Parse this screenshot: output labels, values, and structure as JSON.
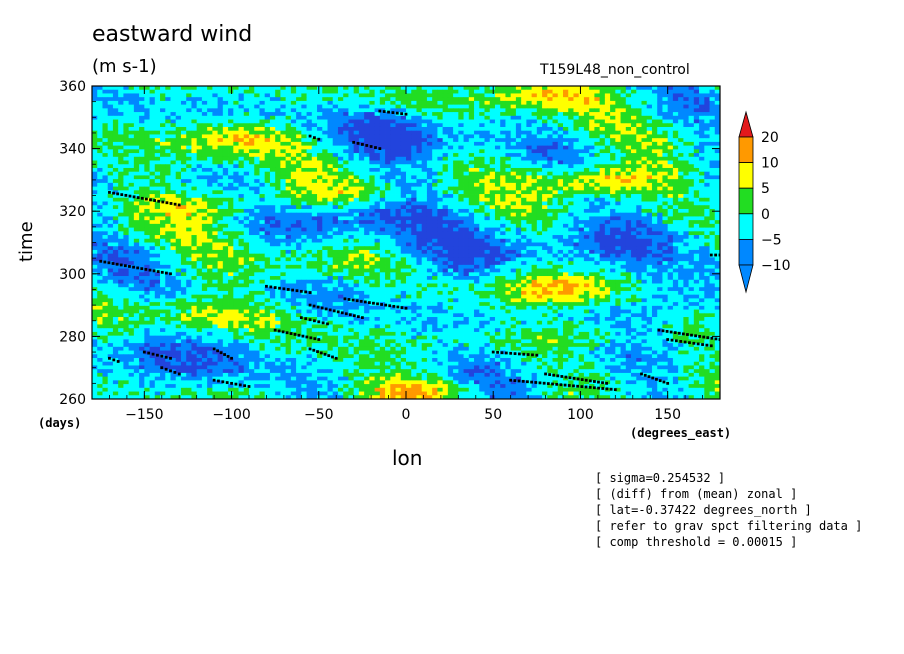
{
  "chart_data": {
    "type": "heatmap",
    "title": "eastward wind",
    "units": "(m s-1)",
    "run_name": "T159L48_non_control",
    "xlabel": "lon",
    "ylabel": "time",
    "x_units": "(degrees_east)",
    "y_units": "(days)",
    "xlim": [
      -180,
      180
    ],
    "ylim": [
      260,
      360
    ],
    "x_ticks": [
      -150,
      -100,
      -50,
      0,
      50,
      100,
      150
    ],
    "y_ticks": [
      260,
      280,
      300,
      320,
      340,
      360
    ],
    "colorbar": {
      "levels": [
        20,
        10,
        5,
        0,
        -5,
        -10
      ],
      "colors": [
        "#e31a1c",
        "#ff9900",
        "#ffff00",
        "#22dd22",
        "#00ffff",
        "#0088ff",
        "#2244dd"
      ]
    },
    "warm_patches": [
      {
        "lon": 10,
        "time": 262,
        "value": 15
      },
      {
        "lon": 85,
        "time": 295,
        "value": 12
      },
      {
        "lon": 110,
        "time": 330,
        "value": 14
      },
      {
        "lon": -95,
        "time": 343,
        "value": 10
      },
      {
        "lon": -40,
        "time": 325,
        "value": 8
      },
      {
        "lon": -110,
        "time": 322,
        "value": 9
      },
      {
        "lon": 80,
        "time": 357,
        "value": 12
      },
      {
        "lon": -120,
        "time": 287,
        "value": 6
      },
      {
        "lon": 100,
        "time": 280,
        "value": 7
      },
      {
        "lon": -60,
        "time": 303,
        "value": 6
      }
    ],
    "cold_patches": [
      {
        "lon": -30,
        "time": 318,
        "value": -10
      },
      {
        "lon": 30,
        "time": 305,
        "value": -9
      },
      {
        "lon": 130,
        "time": 312,
        "value": -8
      },
      {
        "lon": -130,
        "time": 272,
        "value": -7
      },
      {
        "lon": 60,
        "time": 268,
        "value": -8
      },
      {
        "lon": 0,
        "time": 345,
        "value": -9
      },
      {
        "lon": 150,
        "time": 290,
        "value": -7
      }
    ],
    "filter_markers": [
      {
        "lon": [
          -170,
          -130
        ],
        "time": [
          326,
          322
        ]
      },
      {
        "lon": [
          -175,
          -135
        ],
        "time": [
          304,
          300
        ]
      },
      {
        "lon": [
          -80,
          -55
        ],
        "time": [
          296,
          294
        ]
      },
      {
        "lon": [
          -55,
          -25
        ],
        "time": [
          290,
          286
        ]
      },
      {
        "lon": [
          -35,
          0
        ],
        "time": [
          292,
          289
        ]
      },
      {
        "lon": [
          -75,
          -50
        ],
        "time": [
          282,
          279
        ]
      },
      {
        "lon": [
          -60,
          -45
        ],
        "time": [
          286,
          284
        ]
      },
      {
        "lon": [
          -55,
          -40
        ],
        "time": [
          276,
          273
        ]
      },
      {
        "lon": [
          -150,
          -135
        ],
        "time": [
          275,
          273
        ]
      },
      {
        "lon": [
          -140,
          -130
        ],
        "time": [
          270,
          268
        ]
      },
      {
        "lon": [
          -110,
          -100
        ],
        "time": [
          276,
          273
        ]
      },
      {
        "lon": [
          -110,
          -90
        ],
        "time": [
          266,
          264
        ]
      },
      {
        "lon": [
          -170,
          -165
        ],
        "time": [
          273,
          272
        ]
      },
      {
        "lon": [
          -30,
          -15
        ],
        "time": [
          342,
          340
        ]
      },
      {
        "lon": [
          -15,
          0
        ],
        "time": [
          352,
          351
        ]
      },
      {
        "lon": [
          -55,
          -50
        ],
        "time": [
          344,
          343
        ]
      },
      {
        "lon": [
          50,
          75
        ],
        "time": [
          275,
          274
        ]
      },
      {
        "lon": [
          60,
          120
        ],
        "time": [
          266,
          263
        ]
      },
      {
        "lon": [
          80,
          115
        ],
        "time": [
          268,
          265
        ]
      },
      {
        "lon": [
          145,
          180
        ],
        "time": [
          282,
          279
        ]
      },
      {
        "lon": [
          150,
          175
        ],
        "time": [
          279,
          277
        ]
      },
      {
        "lon": [
          135,
          150
        ],
        "time": [
          268,
          265
        ]
      },
      {
        "lon": [
          175,
          180
        ],
        "time": [
          306,
          306
        ]
      }
    ]
  },
  "notes": [
    "[ sigma=0.254532 ]",
    "[ (diff) from (mean) zonal ]",
    "[ lat=-0.37422 degrees_north ]",
    "[ refer to grav spct filtering data ]",
    "[ comp threshold = 0.00015 ]"
  ]
}
